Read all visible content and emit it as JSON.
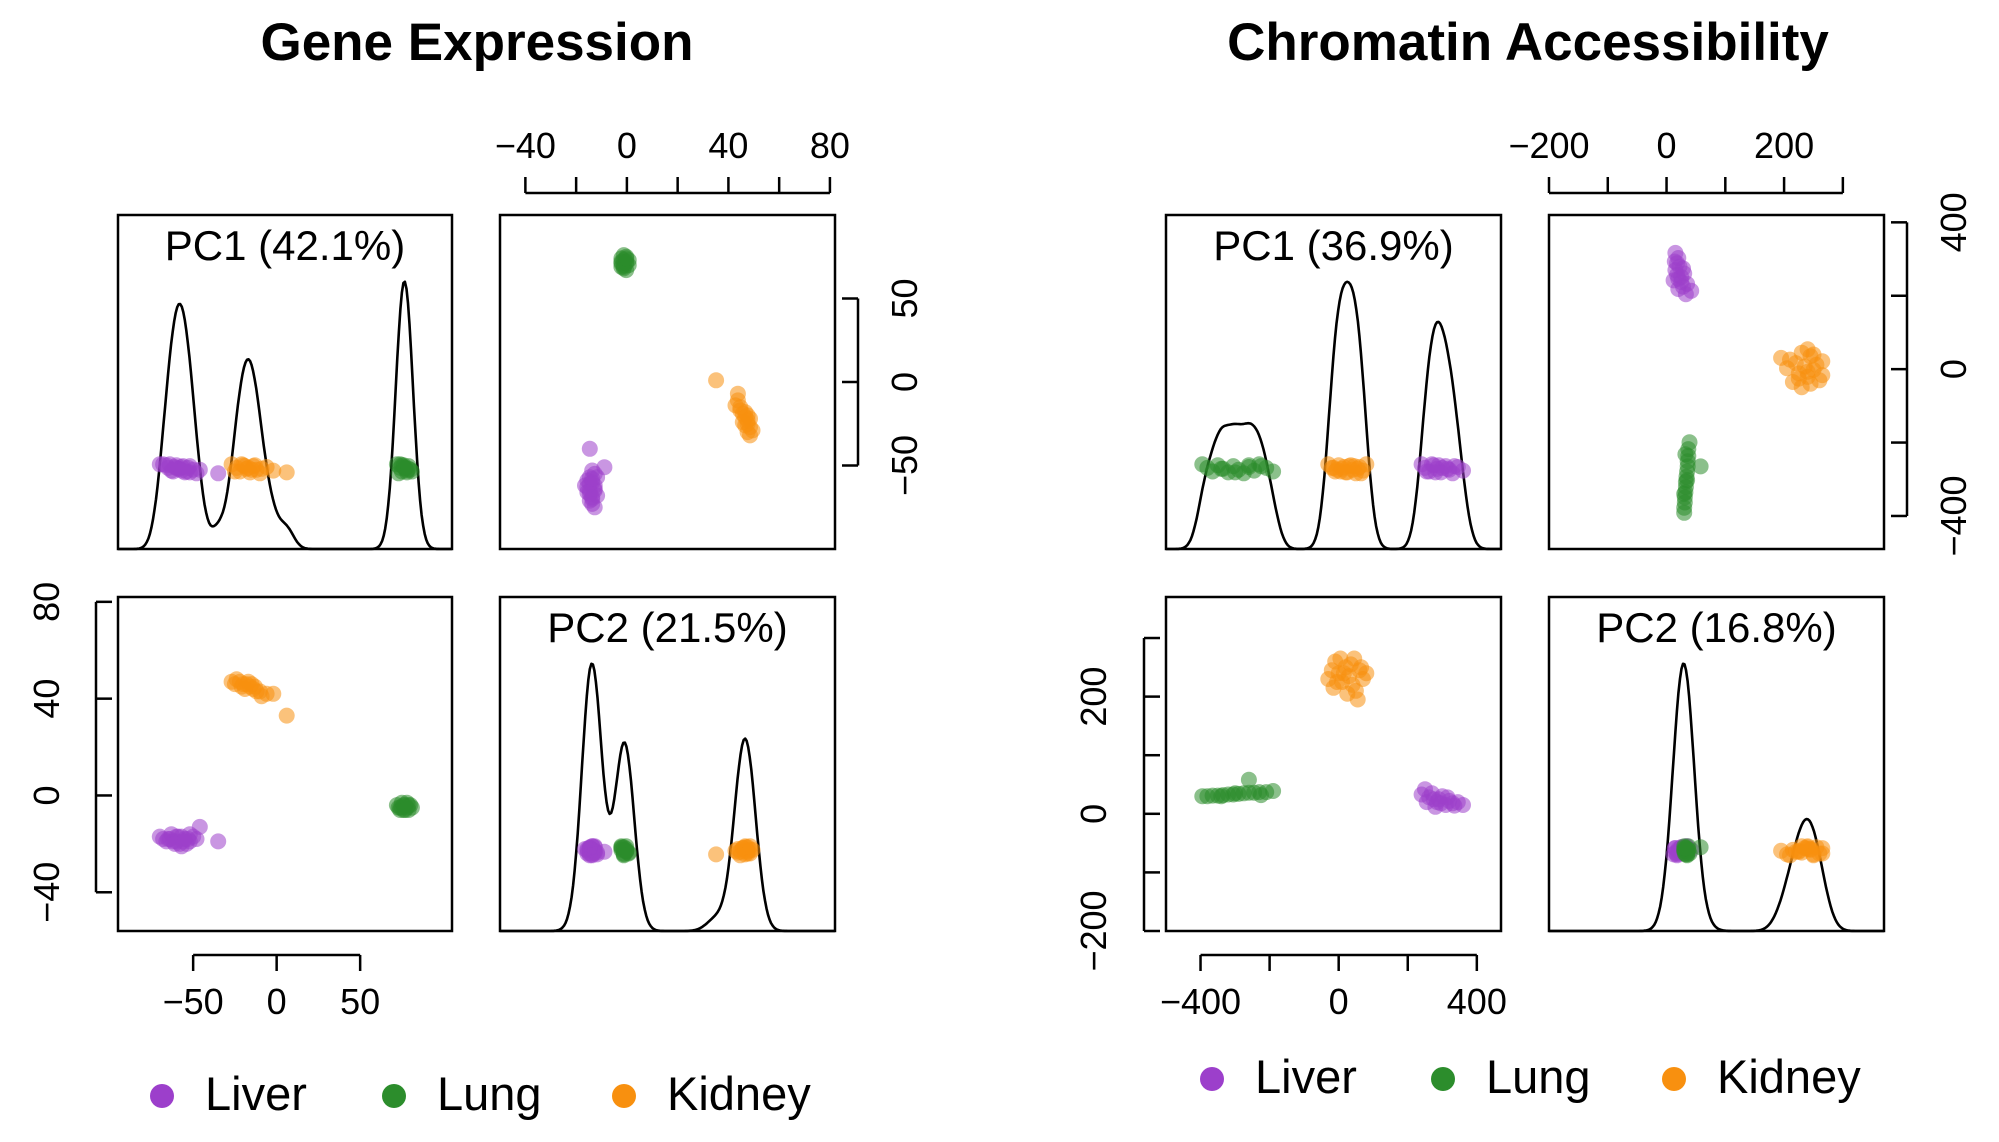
{
  "legend": {
    "items": [
      {
        "label": "Liver",
        "color": "#9c3fcb"
      },
      {
        "label": "Lung",
        "color": "#2c8d2c"
      },
      {
        "label": "Kidney",
        "color": "#f8900f"
      }
    ]
  },
  "chart_data": [
    {
      "type": "scatter",
      "title": "Gene Expression",
      "panel_kind": "pairs-matrix",
      "diagonal": [
        "PC1 (42.1%)",
        "PC2 (21.5%)"
      ],
      "pc1_axis": {
        "ticks": [
          -50,
          0,
          50
        ],
        "tick_labels": [
          "−50",
          "0",
          "50"
        ],
        "range": [
          -95,
          105
        ]
      },
      "pc2_axis": {
        "ticks": [
          -40,
          0,
          40,
          80
        ],
        "tick_labels": [
          "−40",
          "0",
          "40",
          "80"
        ],
        "range": [
          -56,
          82
        ]
      },
      "top_axis": {
        "ticks": [
          -40,
          -20,
          0,
          20,
          40,
          60,
          80
        ],
        "tick_labels": [
          "−40",
          "",
          "0",
          "",
          "40",
          "",
          "80"
        ]
      },
      "right_axis": {
        "ticks": [
          -50,
          0,
          50
        ],
        "tick_labels": [
          "−50",
          "0",
          "50"
        ]
      },
      "series": [
        {
          "name": "Liver",
          "color": "#9c3fcb",
          "points": [
            [
              -70,
              -17
            ],
            [
              -65,
              -18
            ],
            [
              -62,
              -19
            ],
            [
              -60,
              -17
            ],
            [
              -58,
              -20
            ],
            [
              -55,
              -18
            ],
            [
              -52,
              -19
            ],
            [
              -50,
              -17
            ],
            [
              -48,
              -18
            ],
            [
              -57,
              -21
            ],
            [
              -63,
              -16
            ],
            [
              -68,
              -18
            ],
            [
              -60,
              -19
            ],
            [
              -54,
              -20
            ],
            [
              -66,
              -19
            ],
            [
              -59,
              -17
            ],
            [
              -52,
              -16
            ],
            [
              -56,
              -19
            ],
            [
              -46,
              -13
            ],
            [
              -35,
              -19
            ],
            [
              -61,
              -20
            ],
            [
              -57,
              -17
            ],
            [
              -64,
              -18
            ],
            [
              -53,
              -18
            ]
          ]
        },
        {
          "name": "Lung",
          "color": "#2c8d2c",
          "points": [
            [
              72,
              -4
            ],
            [
              74,
              -5
            ],
            [
              75,
              -3
            ],
            [
              76,
              -6
            ],
            [
              77,
              -4
            ],
            [
              78,
              -5
            ],
            [
              79,
              -6
            ],
            [
              80,
              -4
            ],
            [
              73,
              -5
            ],
            [
              76,
              -4
            ],
            [
              78,
              -3
            ],
            [
              74,
              -6
            ],
            [
              77,
              -6
            ],
            [
              81,
              -5
            ],
            [
              75,
              -5
            ],
            [
              79,
              -4
            ]
          ]
        },
        {
          "name": "Kidney",
          "color": "#f8900f",
          "points": [
            [
              -27,
              47
            ],
            [
              -24,
              48
            ],
            [
              -22,
              47
            ],
            [
              -20,
              46
            ],
            [
              -18,
              46
            ],
            [
              -16,
              45
            ],
            [
              -14,
              44
            ],
            [
              -12,
              43
            ],
            [
              -10,
              43
            ],
            [
              -6,
              42
            ],
            [
              -2,
              42
            ],
            [
              -21,
              45
            ],
            [
              -17,
              47
            ],
            [
              -25,
              46
            ],
            [
              -13,
              45
            ],
            [
              -9,
              41
            ],
            [
              6,
              33
            ],
            [
              -19,
              44
            ],
            [
              -15,
              46
            ]
          ]
        }
      ]
    },
    {
      "type": "scatter",
      "title": "Chromatin Accessibility",
      "panel_kind": "pairs-matrix",
      "diagonal": [
        "PC1 (36.9%)",
        "PC2 (16.8%)"
      ],
      "pc1_axis": {
        "ticks": [
          -400,
          -200,
          0,
          200,
          400
        ],
        "tick_labels": [
          "−400",
          "",
          "0",
          "",
          "400"
        ],
        "range": [
          -500,
          470
        ]
      },
      "pc2_axis": {
        "ticks": [
          -200,
          -100,
          0,
          100,
          200,
          300
        ],
        "tick_labels": [
          "−200",
          "",
          "0",
          "",
          "200",
          ""
        ],
        "range": [
          -200,
          370
        ]
      },
      "top_axis": {
        "ticks": [
          -200,
          -100,
          0,
          100,
          200,
          300
        ],
        "tick_labels": [
          "−200",
          "",
          "0",
          "",
          "200",
          ""
        ]
      },
      "right_axis": {
        "ticks": [
          -400,
          -200,
          0,
          200,
          400
        ],
        "tick_labels": [
          "−400",
          "",
          "0",
          "",
          "400"
        ]
      },
      "series": [
        {
          "name": "Liver",
          "color": "#9c3fcb",
          "points": [
            [
              240,
              33
            ],
            [
              250,
              42
            ],
            [
              262,
              28
            ],
            [
              275,
              25
            ],
            [
              285,
              20
            ],
            [
              296,
              18
            ],
            [
              310,
              15
            ],
            [
              320,
              22
            ],
            [
              330,
              18
            ],
            [
              345,
              20
            ],
            [
              360,
              15
            ],
            [
              270,
              35
            ],
            [
              300,
              30
            ],
            [
              255,
              20
            ],
            [
              290,
              25
            ],
            [
              315,
              28
            ],
            [
              280,
              12
            ],
            [
              335,
              14
            ]
          ]
        },
        {
          "name": "Lung",
          "color": "#2c8d2c",
          "points": [
            [
              -395,
              30
            ],
            [
              -380,
              30
            ],
            [
              -365,
              31
            ],
            [
              -350,
              31
            ],
            [
              -335,
              32
            ],
            [
              -320,
              33
            ],
            [
              -305,
              33
            ],
            [
              -290,
              34
            ],
            [
              -275,
              35
            ],
            [
              -260,
              36
            ],
            [
              -245,
              36
            ],
            [
              -230,
              37
            ],
            [
              -210,
              37
            ],
            [
              -190,
              39
            ],
            [
              -260,
              58
            ],
            [
              -340,
              30
            ],
            [
              -300,
              35
            ],
            [
              -225,
              32
            ]
          ]
        },
        {
          "name": "Kidney",
          "color": "#f8900f",
          "points": [
            [
              -30,
              230
            ],
            [
              -20,
              245
            ],
            [
              -10,
              260
            ],
            [
              0,
              240
            ],
            [
              10,
              225
            ],
            [
              20,
              250
            ],
            [
              30,
              235
            ],
            [
              40,
              220
            ],
            [
              50,
              210
            ],
            [
              60,
              245
            ],
            [
              70,
              230
            ],
            [
              80,
              240
            ],
            [
              -15,
              215
            ],
            [
              5,
              265
            ],
            [
              35,
              255
            ],
            [
              55,
              195
            ],
            [
              25,
              205
            ],
            [
              45,
              265
            ],
            [
              -5,
              225
            ],
            [
              65,
              250
            ],
            [
              15,
              240
            ]
          ]
        }
      ]
    }
  ]
}
